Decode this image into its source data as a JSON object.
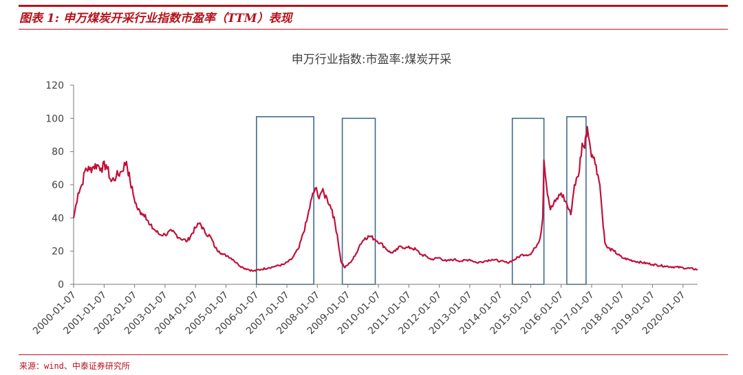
{
  "header": {
    "figure_title": "图表 1:  申万煤炭开采行业指数市盈率（TTM）表现"
  },
  "footer": {
    "source": "来源：wind、中泰证券研究所"
  },
  "colors": {
    "accent": "#b5121b",
    "series": "#c0103a",
    "highlight_box": "#3d6a8e"
  },
  "chart_data": {
    "type": "line",
    "title": "申万行业指数:市盈率:煤炭开采",
    "xlabel": "",
    "ylabel": "",
    "ylim": [
      0,
      120
    ],
    "yticks": [
      0,
      20,
      40,
      60,
      80,
      100,
      120
    ],
    "xlim": [
      "2000-01-07",
      "2020-06-30"
    ],
    "xticks": [
      "2000-01-07",
      "2001-01-07",
      "2002-01-07",
      "2003-01-07",
      "2004-01-07",
      "2005-01-07",
      "2006-01-07",
      "2007-01-07",
      "2008-01-07",
      "2009-01-07",
      "2010-01-07",
      "2011-01-07",
      "2012-01-07",
      "2013-01-07",
      "2014-01-07",
      "2015-01-07",
      "2016-01-07",
      "2017-01-07",
      "2018-01-07",
      "2019-01-07",
      "2020-01-07"
    ],
    "grid": false,
    "legend": "none",
    "series": [
      {
        "x": [
          "2000-01-07",
          "2000-03-01",
          "2000-04-15",
          "2000-06-01",
          "2000-07-15",
          "2000-09-01",
          "2000-10-15",
          "2000-12-01",
          "2001-02-01",
          "2001-04-01",
          "2001-06-01",
          "2001-08-01",
          "2001-10-01",
          "2001-11-15",
          "2002-01-01",
          "2002-02-15",
          "2002-04-01",
          "2002-05-15",
          "2002-07-01",
          "2002-09-01",
          "2002-11-01",
          "2003-01-07",
          "2003-04-01",
          "2003-07-01",
          "2003-10-01",
          "2004-01-07",
          "2004-03-01",
          "2004-05-01",
          "2004-07-01",
          "2004-09-01",
          "2004-10-15",
          "2004-12-01",
          "2005-02-01",
          "2005-04-01",
          "2005-06-01",
          "2005-08-01",
          "2005-10-01",
          "2005-12-01",
          "2006-03-01",
          "2006-06-01",
          "2006-09-01",
          "2006-12-01",
          "2007-03-01",
          "2007-06-01",
          "2007-09-01",
          "2007-11-01",
          "2007-12-15",
          "2008-01-15",
          "2008-03-01",
          "2008-05-01",
          "2008-07-01",
          "2008-09-01",
          "2008-10-15",
          "2008-12-01",
          "2009-02-01",
          "2009-04-01",
          "2009-06-01",
          "2009-08-01",
          "2009-10-01",
          "2009-12-01",
          "2010-02-01",
          "2010-04-01",
          "2010-06-01",
          "2010-08-01",
          "2010-10-01",
          "2010-12-01",
          "2011-02-01",
          "2011-04-01",
          "2011-06-01",
          "2011-08-01",
          "2011-10-01",
          "2012-01-07",
          "2012-04-01",
          "2012-07-01",
          "2012-10-01",
          "2013-01-07",
          "2013-04-01",
          "2013-07-01",
          "2013-10-01",
          "2014-01-07",
          "2014-04-01",
          "2014-07-01",
          "2014-10-01",
          "2015-01-07",
          "2015-03-01",
          "2015-05-01",
          "2015-06-01",
          "2015-06-15",
          "2015-07-15",
          "2015-09-01",
          "2015-11-01",
          "2016-01-07",
          "2016-03-01",
          "2016-05-01",
          "2016-06-15",
          "2016-08-01",
          "2016-09-15",
          "2016-10-15",
          "2016-11-01",
          "2016-11-15",
          "2016-12-15",
          "2017-01-15",
          "2017-03-01",
          "2017-04-15",
          "2017-05-15",
          "2017-06-15",
          "2017-07-15",
          "2017-10-01",
          "2018-01-07",
          "2018-06-01",
          "2019-01-07",
          "2019-06-01",
          "2020-01-07",
          "2020-06-30"
        ],
        "values": [
          40,
          55,
          60,
          70,
          69,
          71,
          72,
          70,
          72,
          62,
          65,
          68,
          74,
          62,
          52,
          45,
          43,
          42,
          36,
          33,
          30,
          30,
          32,
          28,
          26,
          34,
          37,
          31,
          29,
          22,
          20,
          18,
          17,
          15,
          12,
          10,
          9,
          8,
          9,
          10,
          11,
          12,
          15,
          22,
          38,
          52,
          58,
          53,
          56,
          52,
          45,
          30,
          14,
          10,
          13,
          17,
          24,
          28,
          29,
          27,
          25,
          22,
          19,
          20,
          23,
          22,
          22,
          21,
          18,
          17,
          15,
          16,
          14,
          15,
          14,
          15,
          13,
          14,
          15,
          14,
          13,
          15,
          18,
          18,
          22,
          28,
          40,
          75,
          60,
          45,
          50,
          55,
          50,
          42,
          60,
          65,
          85,
          82,
          90,
          95,
          85,
          78,
          72,
          60,
          42,
          25,
          22,
          20,
          16,
          14,
          12,
          11,
          10,
          9
        ]
      }
    ]
  }
}
